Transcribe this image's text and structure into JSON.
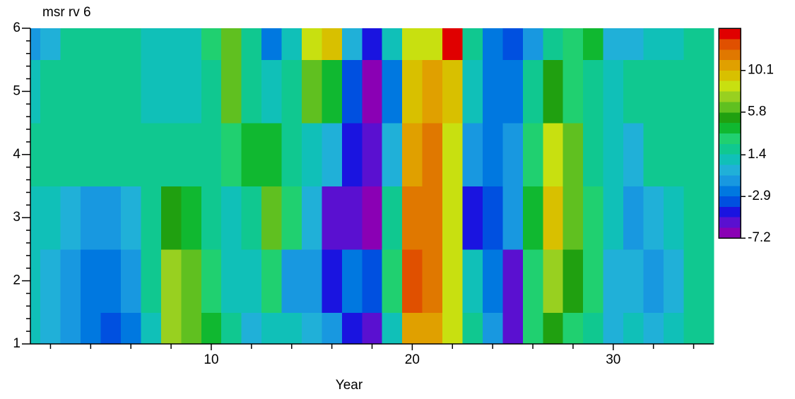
{
  "chart_data": {
    "type": "contour",
    "title": "msr rv 6",
    "x_label": "Year",
    "x": [
      1,
      2,
      3,
      4,
      5,
      6,
      7,
      8,
      9,
      10,
      11,
      12,
      13,
      14,
      15,
      16,
      17,
      18,
      19,
      20,
      21,
      22,
      23,
      24,
      25,
      26,
      27,
      28,
      29,
      30,
      31,
      32,
      33,
      34,
      35
    ],
    "y": [
      1,
      2,
      3,
      4,
      5,
      6
    ],
    "z": [
      [
        1,
        0,
        -1.5,
        -2.5,
        -3,
        -2,
        1,
        7.5,
        6,
        4,
        2,
        -0.5,
        1,
        1,
        -0.5,
        -1,
        -4,
        -6,
        1,
        10.5,
        11,
        9,
        2,
        -1.5,
        -6,
        3,
        5,
        3,
        2,
        0,
        0.5,
        0,
        1,
        1.5,
        1.5
      ],
      [
        1,
        0,
        -1,
        -2.5,
        -2,
        -1,
        2,
        7.5,
        6,
        3,
        1,
        0.5,
        3,
        -1.5,
        -1,
        -4.5,
        -2,
        -3,
        3,
        12.5,
        12,
        8,
        1,
        -2,
        -6,
        3,
        7,
        5,
        3,
        0,
        -0.5,
        -1,
        0,
        1.5,
        1.5
      ],
      [
        1,
        1,
        0,
        -1.5,
        -1,
        0,
        2.5,
        5,
        4,
        2.5,
        1,
        2.5,
        6,
        3.5,
        0,
        -5.5,
        -5.5,
        -6.5,
        2,
        12,
        11.5,
        8.5,
        -4.5,
        -3,
        -1,
        4,
        10,
        6.5,
        3,
        1,
        -1,
        0,
        1,
        1.5,
        1.5
      ],
      [
        1.5,
        1.5,
        1.5,
        1.5,
        2.5,
        1.5,
        2,
        2,
        2,
        2,
        3.5,
        4,
        4,
        2.5,
        1,
        0,
        -4.5,
        -5.5,
        0,
        11,
        11.5,
        8,
        -1,
        -2,
        -1.5,
        3,
        8,
        6,
        1.5,
        1,
        -0.5,
        1.5,
        1.5,
        1.5,
        1.5
      ],
      [
        1,
        1.5,
        2,
        2,
        2,
        1.5,
        1,
        1,
        1,
        2.5,
        6.5,
        2.5,
        1,
        2.5,
        6,
        4,
        -3.5,
        -6.5,
        -2,
        10,
        11,
        10,
        1,
        -2.5,
        -2,
        2,
        5,
        3,
        2.5,
        1,
        1.5,
        1.5,
        1.5,
        1.5,
        1.5
      ],
      [
        -1,
        -0.5,
        1.5,
        1.5,
        2,
        2.5,
        1,
        0.5,
        1,
        3,
        6,
        2,
        -2,
        1,
        8,
        9.5,
        -0.5,
        -4.5,
        1,
        8,
        9,
        14,
        2,
        -2.5,
        -3,
        -1.5,
        2.5,
        3,
        4,
        -0.5,
        0,
        0.5,
        1,
        1.5,
        1.5
      ]
    ],
    "levels": [
      -7.2,
      -6.12,
      -5.03,
      -3.95,
      -2.87,
      -1.79,
      -0.71,
      0.38,
      1.46,
      2.54,
      3.63,
      4.71,
      5.79,
      6.87,
      7.95,
      9.04,
      10.12,
      11.2,
      12.28,
      13.37,
      14.45
    ],
    "colors": [
      "#8a00b4",
      "#5a10d0",
      "#1a14e0",
      "#0050e0",
      "#0078e0",
      "#1898e0",
      "#20b0d8",
      "#10c0b8",
      "#10c890",
      "#20d070",
      "#10b830",
      "#20a010",
      "#60c020",
      "#98d020",
      "#c8e010",
      "#d8c000",
      "#e0a000",
      "#e07800",
      "#e05000",
      "#e00000"
    ],
    "colorbar_ticks": [
      10.1,
      5.8,
      1.4,
      -2.9,
      -7.2
    ],
    "xlim": [
      1,
      35
    ],
    "ylim": [
      1,
      6
    ],
    "xticks": [
      10,
      20,
      30
    ],
    "xminorticks": [
      2,
      4,
      6,
      8,
      12,
      14,
      16,
      18,
      22,
      24,
      26,
      28,
      32,
      34
    ],
    "yticks": [
      1,
      2,
      3,
      4,
      5,
      6
    ],
    "yminorticks": [
      1.2,
      1.4,
      1.6,
      1.8,
      2.2,
      2.4,
      2.6,
      2.8,
      3.2,
      3.4,
      3.6,
      3.8,
      4.2,
      4.4,
      4.6,
      4.8,
      5.2,
      5.4,
      5.6,
      5.8
    ]
  }
}
